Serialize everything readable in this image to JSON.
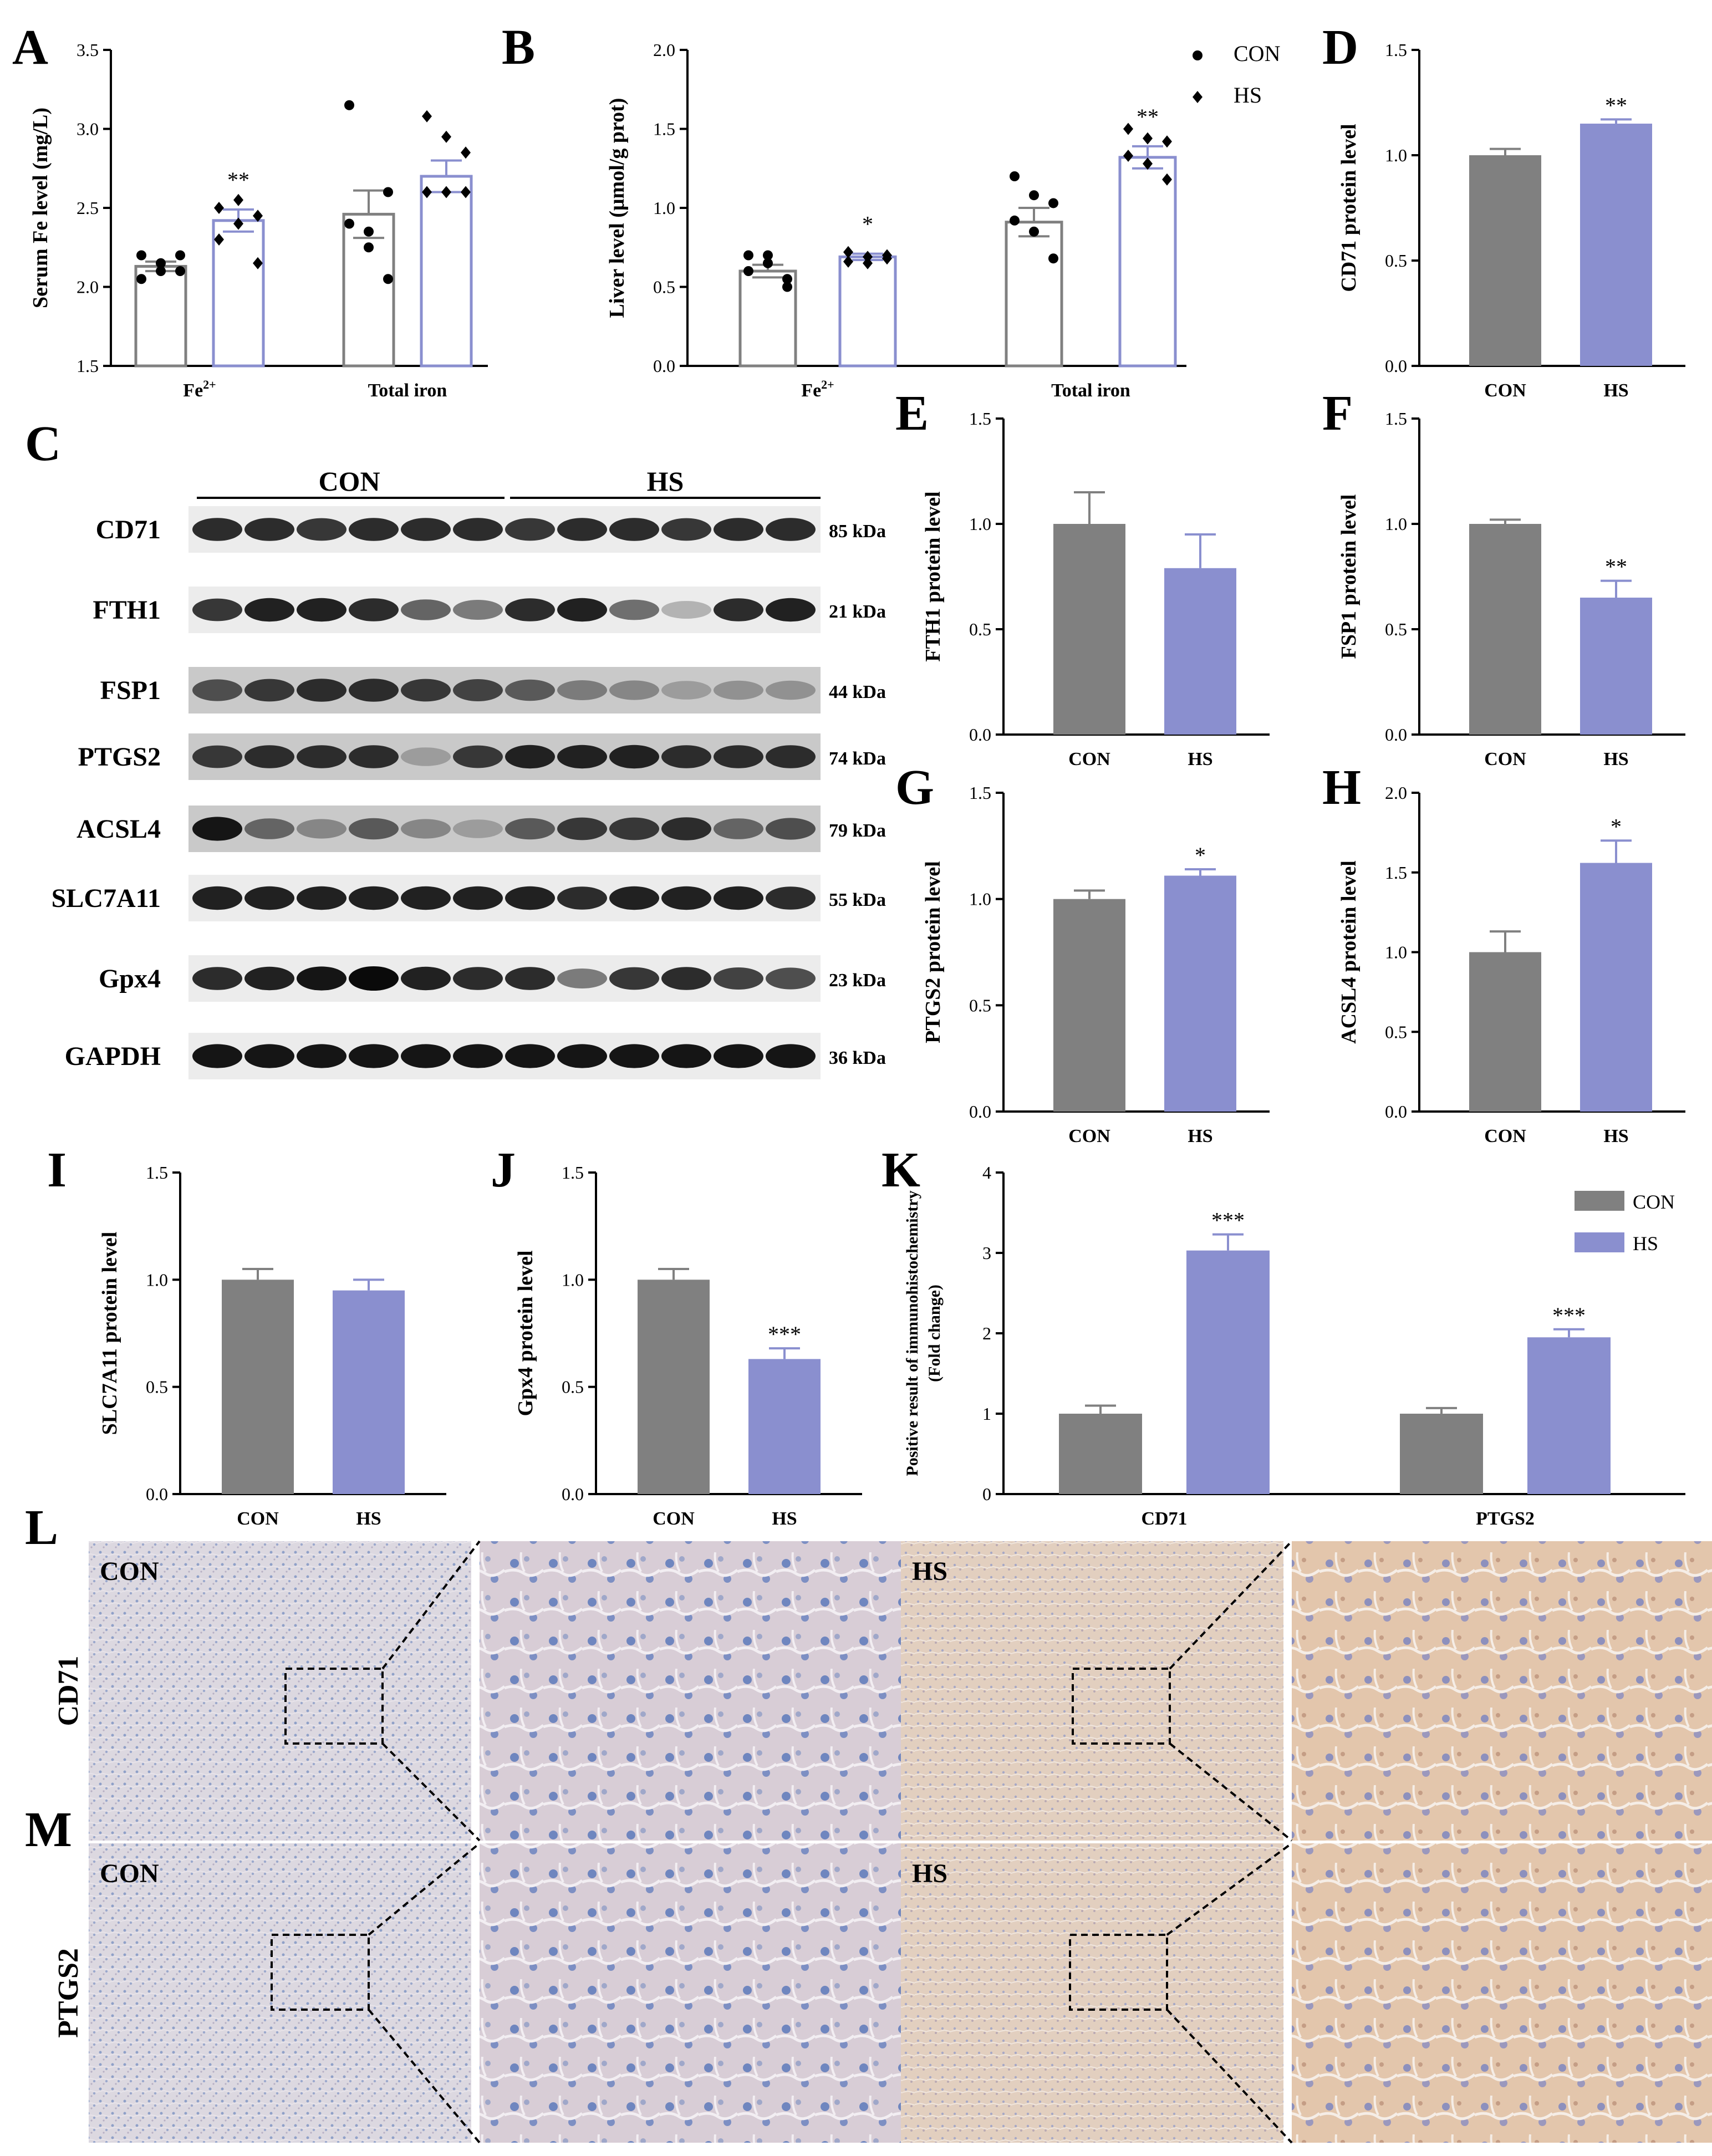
{
  "colors": {
    "con": "#808080",
    "hs": "#8a8fcf",
    "hs_stroke": "#8a8fcf",
    "axis": "#000000"
  },
  "panel_letters": [
    "A",
    "B",
    "C",
    "D",
    "E",
    "F",
    "G",
    "H",
    "I",
    "J",
    "K",
    "L",
    "M"
  ],
  "chart_data": [
    {
      "id": "A",
      "type": "bar",
      "categories": [
        "Fe2+",
        "Total iron"
      ],
      "ylabel": "Serum Fe level (mg/L)",
      "ylim": [
        1.5,
        3.5
      ],
      "yticks": [
        "1.5",
        "2.0",
        "2.5",
        "3.0",
        "3.5"
      ],
      "style": "open",
      "series": [
        {
          "name": "CON",
          "values": [
            2.13,
            2.46
          ],
          "errors": [
            0.03,
            0.15
          ],
          "points": [
            [
              2.2,
              2.1,
              2.2,
              2.05,
              2.15,
              2.1
            ],
            [
              3.15,
              2.25,
              2.6,
              2.4,
              2.35,
              2.05
            ]
          ]
        },
        {
          "name": "HS",
          "values": [
            2.42,
            2.7
          ],
          "errors": [
            0.07,
            0.1
          ],
          "points": [
            [
              2.5,
              2.55,
              2.45,
              2.3,
              2.4,
              2.15
            ],
            [
              3.08,
              2.95,
              2.85,
              2.6,
              2.6,
              2.6
            ]
          ]
        }
      ],
      "sig": [
        "**",
        ""
      ]
    },
    {
      "id": "B",
      "type": "bar",
      "categories": [
        "Fe2+",
        "Total iron"
      ],
      "ylabel": "Liver level (μmol/g prot)",
      "ylim": [
        0,
        2.0
      ],
      "yticks": [
        "0.0",
        "0.5",
        "1.0",
        "1.5",
        "2.0"
      ],
      "style": "open",
      "legend": [
        {
          "marker": "●",
          "label": "CON"
        },
        {
          "marker": "◆",
          "label": "HS"
        }
      ],
      "series": [
        {
          "name": "CON",
          "values": [
            0.6,
            0.91
          ],
          "errors": [
            0.04,
            0.09
          ],
          "points": [
            [
              0.7,
              0.65,
              0.55,
              0.6,
              0.7,
              0.5
            ],
            [
              1.2,
              1.08,
              1.03,
              0.92,
              0.85,
              0.68
            ]
          ]
        },
        {
          "name": "HS",
          "values": [
            0.69,
            1.32
          ],
          "errors": [
            0.02,
            0.07
          ],
          "points": [
            [
              0.72,
              0.69,
              0.68,
              0.66,
              0.65,
              0.7
            ],
            [
              1.5,
              1.44,
              1.42,
              1.33,
              1.28,
              1.18
            ]
          ]
        }
      ],
      "sig": [
        "*",
        "**"
      ]
    },
    {
      "id": "D",
      "type": "bar",
      "categories": [
        "CON",
        "HS"
      ],
      "ylabel": "CD71 protein level",
      "ylim": [
        0,
        1.5
      ],
      "yticks": [
        "0.0",
        "0.5",
        "1.0",
        "1.5"
      ],
      "values": [
        1.0,
        1.15
      ],
      "errors": [
        0.03,
        0.02
      ],
      "sig": [
        "",
        "**"
      ]
    },
    {
      "id": "E",
      "type": "bar",
      "categories": [
        "CON",
        "HS"
      ],
      "ylabel": "FTH1 protein level",
      "ylim": [
        0,
        1.5
      ],
      "yticks": [
        "0.0",
        "0.5",
        "1.0",
        "1.5"
      ],
      "values": [
        1.0,
        0.79
      ],
      "errors": [
        0.15,
        0.16
      ],
      "sig": [
        "",
        ""
      ]
    },
    {
      "id": "F",
      "type": "bar",
      "categories": [
        "CON",
        "HS"
      ],
      "ylabel": "FSP1 protein level",
      "ylim": [
        0,
        1.5
      ],
      "yticks": [
        "0.0",
        "0.5",
        "1.0",
        "1.5"
      ],
      "values": [
        1.0,
        0.65
      ],
      "errors": [
        0.02,
        0.08
      ],
      "sig": [
        "",
        "**"
      ]
    },
    {
      "id": "G",
      "type": "bar",
      "categories": [
        "CON",
        "HS"
      ],
      "ylabel": "PTGS2 protein level",
      "ylim": [
        0,
        1.5
      ],
      "yticks": [
        "0.0",
        "0.5",
        "1.0",
        "1.5"
      ],
      "values": [
        1.0,
        1.11
      ],
      "errors": [
        0.04,
        0.03
      ],
      "sig": [
        "",
        "*"
      ]
    },
    {
      "id": "H",
      "type": "bar",
      "categories": [
        "CON",
        "HS"
      ],
      "ylabel": "ACSL4 protein level",
      "ylim": [
        0,
        2.0
      ],
      "yticks": [
        "0.0",
        "0.5",
        "1.0",
        "1.5",
        "2.0"
      ],
      "values": [
        1.0,
        1.56
      ],
      "errors": [
        0.13,
        0.14
      ],
      "sig": [
        "",
        "*"
      ]
    },
    {
      "id": "I",
      "type": "bar",
      "categories": [
        "CON",
        "HS"
      ],
      "ylabel": "SLC7A11 protein level",
      "ylim": [
        0,
        1.5
      ],
      "yticks": [
        "0.0",
        "0.5",
        "1.0",
        "1.5"
      ],
      "values": [
        1.0,
        0.95
      ],
      "errors": [
        0.05,
        0.05
      ],
      "sig": [
        "",
        ""
      ]
    },
    {
      "id": "J",
      "type": "bar",
      "categories": [
        "CON",
        "HS"
      ],
      "ylabel": "Gpx4 protein level",
      "ylim": [
        0,
        1.5
      ],
      "yticks": [
        "0.0",
        "0.5",
        "1.0",
        "1.5"
      ],
      "values": [
        1.0,
        0.63
      ],
      "errors": [
        0.05,
        0.05
      ],
      "sig": [
        "",
        "***"
      ]
    },
    {
      "id": "K",
      "type": "bar",
      "categories": [
        "CD71",
        "PTGS2"
      ],
      "ylabel": "Positive result of immunohistochemistry",
      "ylabel2": "(Fold change)",
      "ylim": [
        0,
        4
      ],
      "yticks": [
        "0",
        "1",
        "2",
        "3",
        "4"
      ],
      "legend": [
        {
          "label": "CON"
        },
        {
          "label": "HS"
        }
      ],
      "series": [
        {
          "name": "CON",
          "values": [
            1.0,
            1.0
          ],
          "errors": [
            0.1,
            0.07
          ]
        },
        {
          "name": "HS",
          "values": [
            3.03,
            1.95
          ],
          "errors": [
            0.2,
            0.1
          ]
        }
      ],
      "sig": [
        "***",
        "***"
      ]
    }
  ],
  "western_blot": {
    "groups": [
      "CON",
      "HS"
    ],
    "bands": [
      {
        "protein": "CD71",
        "size": "85 kDa"
      },
      {
        "protein": "FTH1",
        "size": "21 kDa"
      },
      {
        "protein": "FSP1",
        "size": "44 kDa"
      },
      {
        "protein": "PTGS2",
        "size": "74 kDa"
      },
      {
        "protein": "ACSL4",
        "size": "79 kDa"
      },
      {
        "protein": "SLC7A11",
        "size": "55 kDa"
      },
      {
        "protein": "Gpx4",
        "size": "23 kDa"
      },
      {
        "protein": "GAPDH",
        "size": "36 kDa"
      }
    ],
    "lane_intensity": [
      [
        0.85,
        0.85,
        0.8,
        0.85,
        0.85,
        0.85,
        0.8,
        0.85,
        0.85,
        0.8,
        0.85,
        0.85
      ],
      [
        0.8,
        0.9,
        0.9,
        0.85,
        0.6,
        0.5,
        0.85,
        0.9,
        0.55,
        0.25,
        0.85,
        0.9
      ],
      [
        0.7,
        0.8,
        0.85,
        0.85,
        0.8,
        0.75,
        0.65,
        0.5,
        0.45,
        0.35,
        0.4,
        0.4
      ],
      [
        0.8,
        0.85,
        0.85,
        0.85,
        0.35,
        0.8,
        0.9,
        0.9,
        0.9,
        0.85,
        0.85,
        0.85
      ],
      [
        0.95,
        0.6,
        0.45,
        0.65,
        0.45,
        0.35,
        0.65,
        0.8,
        0.8,
        0.85,
        0.6,
        0.7
      ],
      [
        0.9,
        0.9,
        0.9,
        0.9,
        0.9,
        0.9,
        0.9,
        0.85,
        0.9,
        0.9,
        0.9,
        0.85
      ],
      [
        0.85,
        0.9,
        0.95,
        1.0,
        0.9,
        0.85,
        0.85,
        0.5,
        0.8,
        0.85,
        0.75,
        0.7
      ],
      [
        0.95,
        0.95,
        0.95,
        0.95,
        0.95,
        0.95,
        0.95,
        0.95,
        0.95,
        0.95,
        0.95,
        0.95
      ]
    ]
  },
  "ihc": {
    "rows": [
      {
        "letter": "L",
        "marker": "CD71",
        "left": "CON",
        "right": "HS"
      },
      {
        "letter": "M",
        "marker": "PTGS2",
        "left": "CON",
        "right": "HS"
      }
    ]
  },
  "fe_superscript": "2+"
}
